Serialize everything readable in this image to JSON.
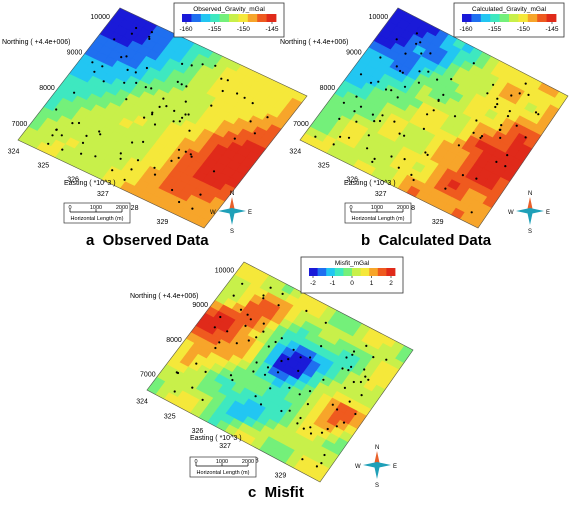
{
  "panels": [
    {
      "id": "a",
      "caption": "a  Observed Data",
      "colorbar": {
        "title": "Observed_Gravity_mGal",
        "ticks": [
          "-160",
          "-155",
          "-150",
          "-145"
        ]
      },
      "palette": [
        "#1a1ad8",
        "#1f6ff0",
        "#22c6f2",
        "#3ee8c0",
        "#74f07a",
        "#c8f04a",
        "#f5e83a",
        "#f7a52a",
        "#ef5a1f",
        "#e02a1a"
      ]
    },
    {
      "id": "b",
      "caption": "b  Calculated Data",
      "colorbar": {
        "title": "Calculated_Gravity_mGal",
        "ticks": [
          "-160",
          "-155",
          "-150",
          "-145"
        ]
      },
      "palette": [
        "#1a1ad8",
        "#1f6ff0",
        "#22c6f2",
        "#3ee8c0",
        "#74f07a",
        "#c8f04a",
        "#f5e83a",
        "#f7a52a",
        "#ef5a1f",
        "#e02a1a"
      ]
    },
    {
      "id": "c",
      "caption": "c  Misfit",
      "colorbar": {
        "title": "Misfit_mGal",
        "ticks": [
          "-2",
          "-1",
          "0",
          "1",
          "2"
        ]
      },
      "palette": [
        "#1a1ad8",
        "#1f6ff0",
        "#22c6f2",
        "#3ee8c0",
        "#74f07a",
        "#c8f04a",
        "#f5e83a",
        "#f7a52a",
        "#ef5a1f",
        "#e02a1a"
      ]
    }
  ],
  "axes": {
    "northing_label": "Northing (  +4.4e+006)",
    "northing_ticks": [
      "10000",
      "9000",
      "8000",
      "7000"
    ],
    "easting_label": "Easting ( *10^3 )",
    "easting_ticks": [
      "324",
      "325",
      "326",
      "327",
      "328",
      "329"
    ]
  },
  "scale_bar": {
    "ticks": [
      "0",
      "1000",
      "2000"
    ],
    "label": "Horizontal Length (m)"
  },
  "compass": {
    "n": "N",
    "e": "E",
    "s": "S",
    "w": "W"
  }
}
